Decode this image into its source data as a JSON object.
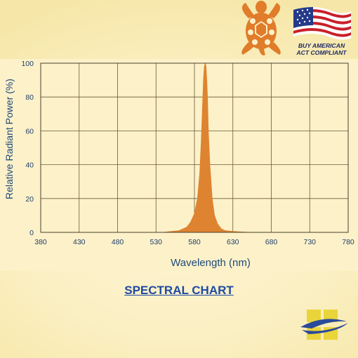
{
  "chart_data": {
    "type": "area",
    "title": "SPECTRAL CHART",
    "xlabel": "Wavelength (nm)",
    "ylabel": "Relative Radiant Power (%)",
    "xlim": [
      380,
      780
    ],
    "ylim": [
      0,
      100
    ],
    "x_ticks": [
      380,
      430,
      480,
      530,
      580,
      630,
      680,
      730,
      780
    ],
    "y_ticks": [
      0,
      20,
      40,
      60,
      80,
      100
    ],
    "grid": true,
    "series": [
      {
        "x": [
          380,
          540,
          560,
          570,
          575,
          580,
          584,
          587,
          589,
          591,
          592,
          593,
          594,
          595,
          596,
          597,
          598,
          600,
          603,
          606,
          610,
          615,
          620,
          630,
          650,
          780
        ],
        "y": [
          0,
          0,
          1,
          3,
          6,
          11,
          20,
          35,
          55,
          80,
          92,
          98,
          100,
          98,
          90,
          78,
          60,
          40,
          20,
          10,
          5,
          2,
          1,
          0.5,
          0,
          0
        ]
      }
    ],
    "colors": {
      "fill": "#de8430",
      "grid": "#6a5a38",
      "plot_bg": "#fdf1c9"
    }
  },
  "badges": {
    "turtle_icon": "turtle-icon",
    "flag_icon": "us-flag-icon",
    "flag_text_line1": "BUY AMERICAN",
    "flag_text_line2": "ACT COMPLIANT",
    "brand_icon": "brand-logo-icon"
  }
}
